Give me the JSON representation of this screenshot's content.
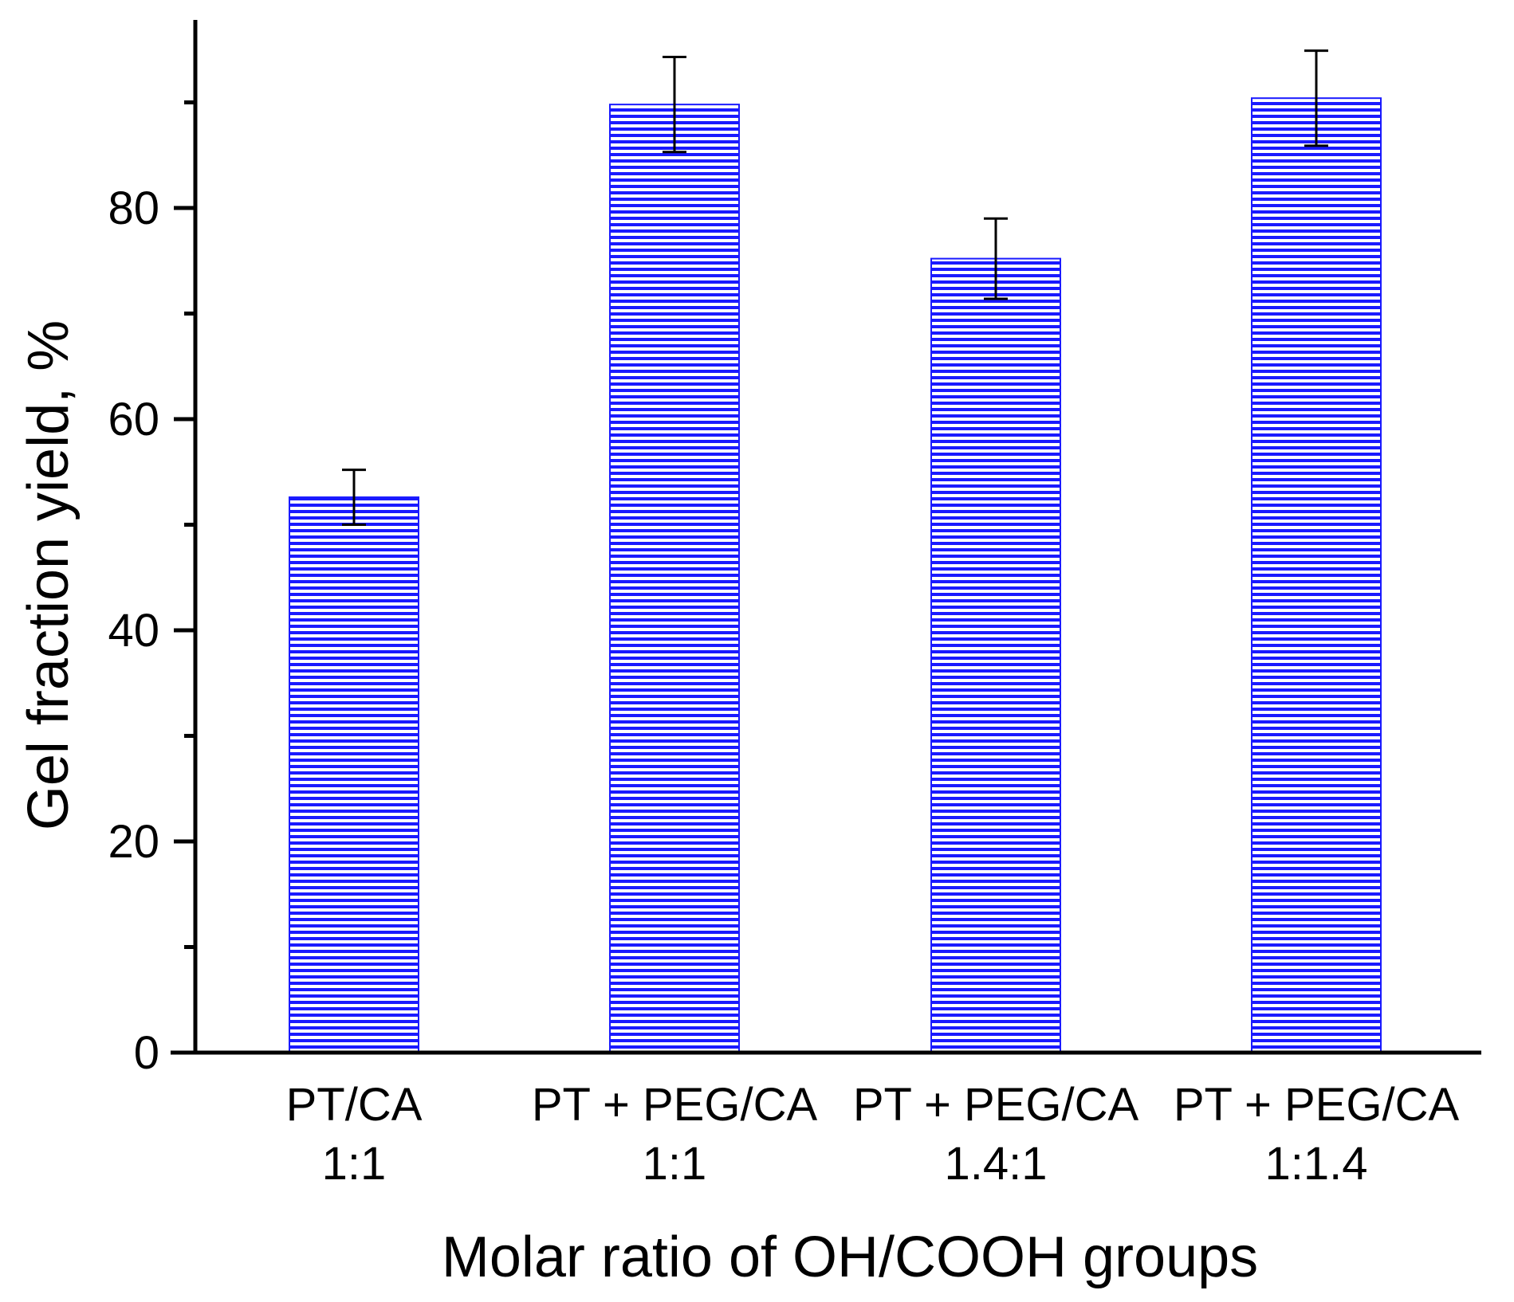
{
  "chart_data": {
    "type": "bar",
    "title": "",
    "xlabel": "Molar ratio of OH/COOH groups",
    "ylabel": "Gel fraction yield, %",
    "ylim": [
      0,
      97
    ],
    "yticks": [
      0,
      20,
      40,
      60,
      80
    ],
    "ytick_labels": [
      "0",
      "20",
      "40",
      "60",
      "80"
    ],
    "grid": false,
    "categories": [
      {
        "line1": "PT/CA",
        "line2": "1:1"
      },
      {
        "line1": "PT + PEG/CA",
        "line2": "1:1"
      },
      {
        "line1": "PT + PEG/CA",
        "line2": "1.4:1"
      },
      {
        "line1": "PT + PEG/CA",
        "line2": "1:1.4"
      }
    ],
    "values": [
      52.6,
      89.8,
      75.2,
      90.4
    ],
    "errors": [
      2.6,
      4.5,
      3.8,
      4.5
    ],
    "bar_fill": "#1a1aff",
    "bar_pattern": "horizontal-lines",
    "error_color": "#000000"
  }
}
